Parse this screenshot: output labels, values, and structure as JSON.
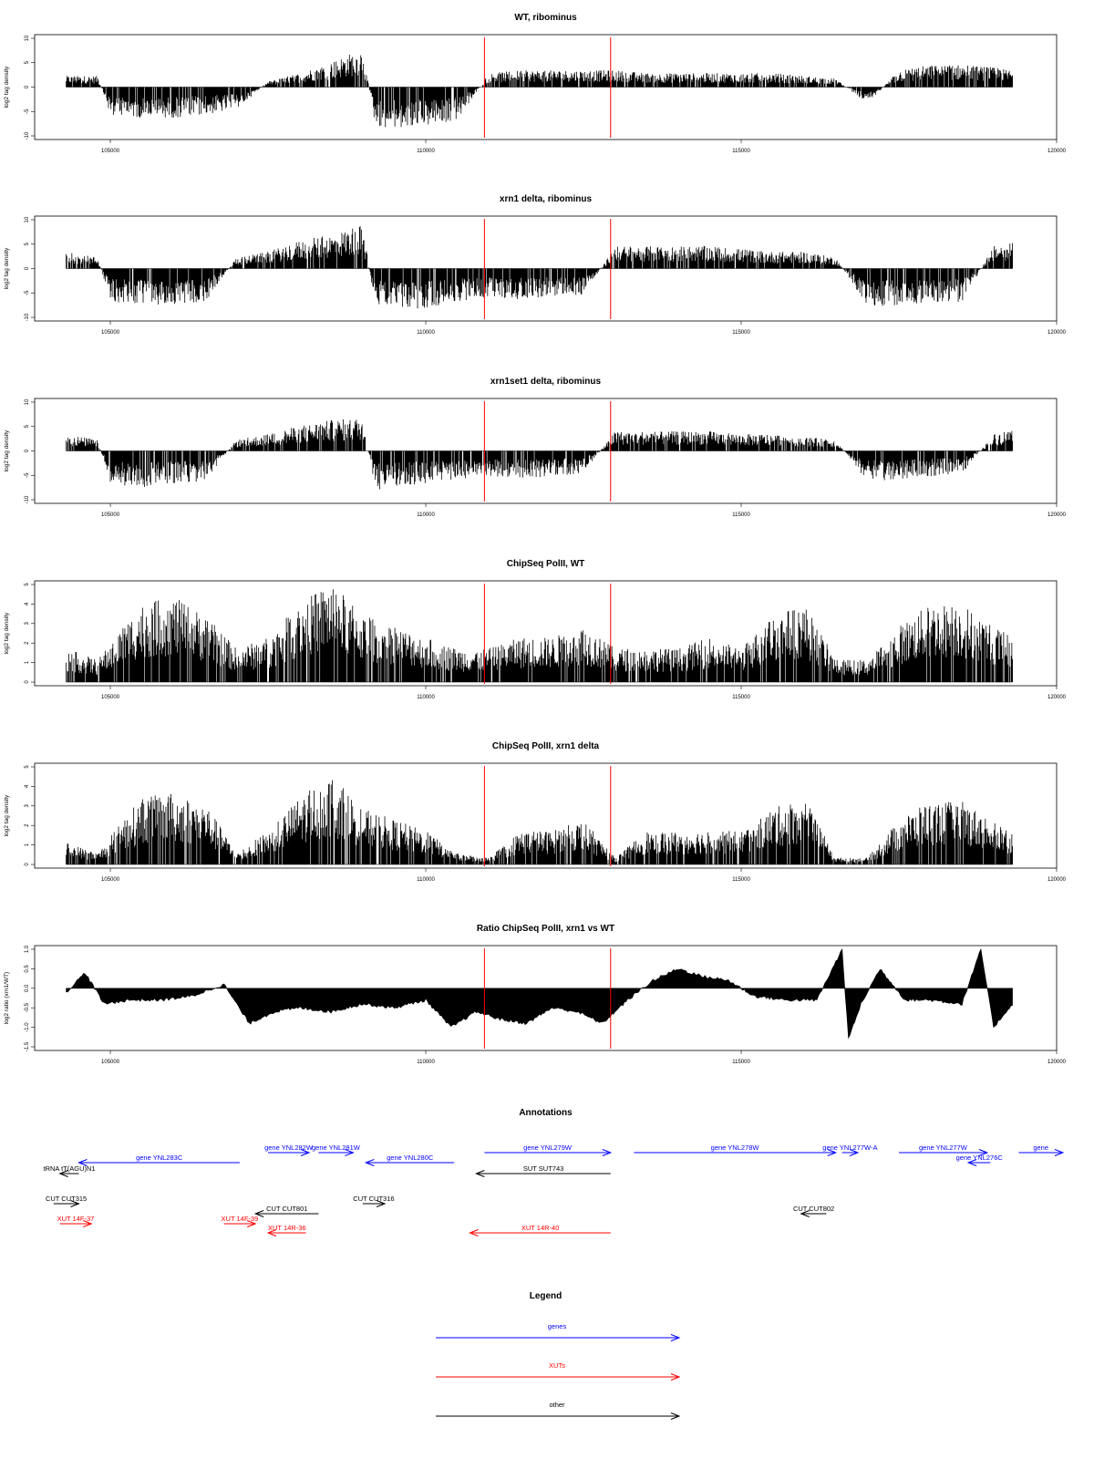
{
  "colors": {
    "gene": "#0000ff",
    "xut": "#ff0000",
    "other": "#000000",
    "marker": "#ff0000",
    "bars": "#000000"
  },
  "x_axis": {
    "range": [
      103800,
      120000
    ],
    "ticks": [
      "105000",
      "110000",
      "115000",
      "120000"
    ]
  },
  "markers": [
    110930,
    112930
  ],
  "chart_data": [
    {
      "type": "bar",
      "title": "WT, ribominus",
      "ylabel": "log2 tag density",
      "ylim": [
        -10,
        10
      ],
      "yticks": [
        "10",
        "5",
        "0",
        "-5",
        "-10"
      ],
      "x": [
        104300,
        104800,
        105000,
        105500,
        106000,
        106500,
        107000,
        107500,
        108000,
        108500,
        109000,
        109200,
        109500,
        110000,
        110500,
        111000,
        111500,
        112000,
        112500,
        113000,
        113500,
        114000,
        114500,
        115000,
        115500,
        116000,
        116500,
        117000,
        117500,
        118000,
        118500,
        119000,
        119300
      ],
      "values": [
        2,
        2,
        -5,
        -5.5,
        -5.5,
        -5,
        -4,
        1,
        2.5,
        4.5,
        7,
        -7,
        -7.5,
        -7,
        -6,
        2.5,
        3,
        3,
        3,
        3,
        2.5,
        2.5,
        2.5,
        2.5,
        2.5,
        2,
        1.5,
        -3,
        3,
        4,
        4,
        3.5,
        3
      ]
    },
    {
      "type": "bar",
      "title": "xrn1 delta, ribominus",
      "ylabel": "log2 tag density",
      "ylim": [
        -10,
        10
      ],
      "yticks": [
        "10",
        "5",
        "0",
        "-5",
        "-10"
      ],
      "x": [
        104300,
        104800,
        105000,
        105500,
        106000,
        106500,
        107000,
        107500,
        108000,
        108500,
        109000,
        109200,
        109500,
        110000,
        110500,
        111000,
        111500,
        112000,
        112500,
        113000,
        113500,
        114000,
        114500,
        115000,
        115500,
        116000,
        116500,
        117000,
        117500,
        118000,
        118500,
        119000,
        119300
      ],
      "values": [
        3,
        2,
        -6,
        -6.5,
        -6.5,
        -6,
        2,
        3,
        5,
        6,
        8,
        -7,
        -7.5,
        -7,
        -6,
        -5,
        -5.5,
        -5,
        -5,
        4,
        4,
        4,
        4,
        3.5,
        3,
        3,
        2,
        -7,
        -6.5,
        -6,
        -6,
        4,
        5
      ]
    },
    {
      "type": "bar",
      "title": "xrn1set1 delta, ribominus",
      "ylabel": "log2 tag density",
      "ylim": [
        -10,
        10
      ],
      "yticks": [
        "10",
        "5",
        "0",
        "-5",
        "-10"
      ],
      "x": [
        104300,
        104800,
        105000,
        105500,
        106000,
        106500,
        107000,
        107500,
        108000,
        108500,
        109000,
        109200,
        109500,
        110000,
        110500,
        111000,
        111500,
        112000,
        112500,
        113000,
        113500,
        114000,
        114500,
        115000,
        115500,
        116000,
        116500,
        117000,
        117500,
        118000,
        118500,
        119000,
        119300
      ],
      "values": [
        3,
        2,
        -6,
        -6.5,
        -6,
        -5.5,
        2,
        3,
        4.5,
        5.5,
        6,
        -7,
        -6.5,
        -6,
        -5,
        -4.5,
        -5,
        -4.5,
        -4,
        3.5,
        3.5,
        3.5,
        3.5,
        3,
        3,
        2.5,
        2,
        -5.5,
        -5,
        -4.5,
        -4,
        3,
        4
      ]
    },
    {
      "type": "bar",
      "title": "ChipSeq PolII, WT",
      "ylabel": "log2 tag density",
      "ylim": [
        0,
        5
      ],
      "yticks": [
        "5",
        "4",
        "3",
        "2",
        "1",
        "0"
      ],
      "x": [
        104300,
        104800,
        105200,
        105500,
        106000,
        106500,
        107000,
        107500,
        108000,
        108500,
        109000,
        109500,
        110000,
        110500,
        111000,
        111500,
        112000,
        112500,
        113000,
        113500,
        114000,
        114500,
        115000,
        115500,
        116000,
        116500,
        117000,
        117500,
        118000,
        118500,
        119000,
        119300
      ],
      "values": [
        1.5,
        1,
        2.5,
        3.5,
        3.8,
        3,
        1.5,
        2,
        3.5,
        4.5,
        3,
        2.5,
        2,
        1.5,
        1.5,
        2,
        2,
        2.5,
        1.5,
        1.5,
        1.5,
        2,
        1.5,
        3,
        3.5,
        1,
        1,
        2.5,
        3.5,
        3.5,
        2.5,
        2
      ]
    },
    {
      "type": "bar",
      "title": "ChipSeq PolII, xrn1 delta",
      "ylabel": "log2 tag density",
      "ylim": [
        0,
        5
      ],
      "yticks": [
        "5",
        "4",
        "3",
        "2",
        "1",
        "0"
      ],
      "x": [
        104300,
        104800,
        105200,
        105500,
        106000,
        106500,
        107000,
        107500,
        108000,
        108500,
        109000,
        109500,
        110000,
        110500,
        111000,
        111500,
        112000,
        112500,
        113000,
        113500,
        114000,
        114500,
        115000,
        115500,
        116000,
        116500,
        117000,
        117500,
        118000,
        118500,
        119000,
        119300
      ],
      "values": [
        1,
        0.5,
        2,
        3,
        3.2,
        2.8,
        0.5,
        1.5,
        3,
        4,
        2.5,
        2,
        1.5,
        0.5,
        0.3,
        1.5,
        1.5,
        2,
        0.3,
        1.5,
        1.5,
        1.5,
        1.5,
        2.5,
        3,
        0.3,
        0.3,
        2,
        2.8,
        2.8,
        2,
        1.5
      ]
    },
    {
      "type": "area",
      "title": "Ratio ChipSeq PolII, xrn1 vs WT",
      "ylabel": "log2 ratio (xrn1/WT)",
      "ylim": [
        -1.5,
        1.0
      ],
      "yticks": [
        "1.0",
        "0.5",
        "0.0",
        "-0.5",
        "-1.0",
        "-1.5"
      ],
      "x": [
        104300,
        104600,
        104900,
        105300,
        105800,
        106300,
        106800,
        107200,
        107600,
        108000,
        108500,
        109000,
        109500,
        110000,
        110400,
        110800,
        111200,
        111600,
        112000,
        112400,
        112800,
        113200,
        113600,
        114000,
        114400,
        114800,
        115200,
        115700,
        116200,
        116600,
        116700,
        116900,
        117200,
        117600,
        118000,
        118500,
        118800,
        119000,
        119300
      ],
      "values": [
        -0.1,
        0.4,
        -0.4,
        -0.3,
        -0.3,
        -0.2,
        0.1,
        -0.9,
        -0.6,
        -0.5,
        -0.6,
        -0.4,
        -0.5,
        -0.3,
        -1.0,
        -0.6,
        -0.8,
        -0.9,
        -0.5,
        -0.6,
        -0.9,
        -0.3,
        0.2,
        0.5,
        0.3,
        0.2,
        -0.2,
        -0.3,
        -0.3,
        1.0,
        -1.3,
        -0.4,
        0.5,
        -0.3,
        -0.3,
        -0.4,
        1.0,
        -1.0,
        -0.4
      ]
    }
  ],
  "annotations": {
    "title": "Annotations",
    "items": [
      {
        "label": "gene YNL283C",
        "class": "gene",
        "start": 104500,
        "end": 107050,
        "dir": "left",
        "row": 1
      },
      {
        "label": "tRNA tT(AGU)N1",
        "class": "other",
        "start": 104200,
        "end": 104500,
        "dir": "left",
        "row": 2
      },
      {
        "label": "gene YNL282W",
        "class": "gene",
        "start": 107500,
        "end": 108150,
        "dir": "right",
        "row": 0
      },
      {
        "label": "gene YNL281W",
        "class": "gene",
        "start": 108300,
        "end": 108850,
        "dir": "right",
        "row": 0
      },
      {
        "label": "gene YNL280C",
        "class": "gene",
        "start": 109050,
        "end": 110450,
        "dir": "left",
        "row": 1
      },
      {
        "label": "gene YNL279W",
        "class": "gene",
        "start": 110930,
        "end": 112930,
        "dir": "right",
        "row": 0
      },
      {
        "label": "gene YNL278W",
        "class": "gene",
        "start": 113300,
        "end": 116500,
        "dir": "right",
        "row": 0
      },
      {
        "label": "gene YNL277W-A",
        "class": "gene",
        "start": 116600,
        "end": 116850,
        "dir": "right",
        "row": 0
      },
      {
        "label": "gene YNL277W",
        "class": "gene",
        "start": 117500,
        "end": 118900,
        "dir": "right",
        "row": 0
      },
      {
        "label": "gene YNL276C",
        "class": "gene",
        "start": 118600,
        "end": 118950,
        "dir": "left",
        "row": 1
      },
      {
        "label": "gene",
        "class": "gene",
        "start": 119400,
        "end": 120100,
        "dir": "right",
        "row": 0
      },
      {
        "label": "CUT CUT315",
        "class": "other",
        "start": 104100,
        "end": 104500,
        "dir": "right",
        "row": 3
      },
      {
        "label": "CUT CUT801",
        "class": "other",
        "start": 107300,
        "end": 108300,
        "dir": "left",
        "row": 4
      },
      {
        "label": "CUT CUT316",
        "class": "other",
        "start": 109000,
        "end": 109350,
        "dir": "right",
        "row": 3
      },
      {
        "label": "SUT SUT743",
        "class": "other",
        "start": 110800,
        "end": 112930,
        "dir": "left",
        "row": 2
      },
      {
        "label": "CUT CUT802",
        "class": "other",
        "start": 115950,
        "end": 116350,
        "dir": "left",
        "row": 4
      },
      {
        "label": "XUT 14F-37",
        "class": "xut",
        "start": 104200,
        "end": 104700,
        "dir": "right",
        "row": 5
      },
      {
        "label": "XUT 14F-39",
        "class": "xut",
        "start": 106800,
        "end": 107300,
        "dir": "right",
        "row": 5
      },
      {
        "label": "XUT 14R-36",
        "class": "xut",
        "start": 107500,
        "end": 108100,
        "dir": "left",
        "row": 6
      },
      {
        "label": "XUT 14R-40",
        "class": "xut",
        "start": 110700,
        "end": 112930,
        "dir": "left",
        "row": 6
      }
    ]
  },
  "legend": {
    "title": "Legend",
    "entries": [
      {
        "label": "genes",
        "class": "gene"
      },
      {
        "label": "XUTs",
        "class": "xut"
      },
      {
        "label": "other",
        "class": "other"
      }
    ]
  }
}
